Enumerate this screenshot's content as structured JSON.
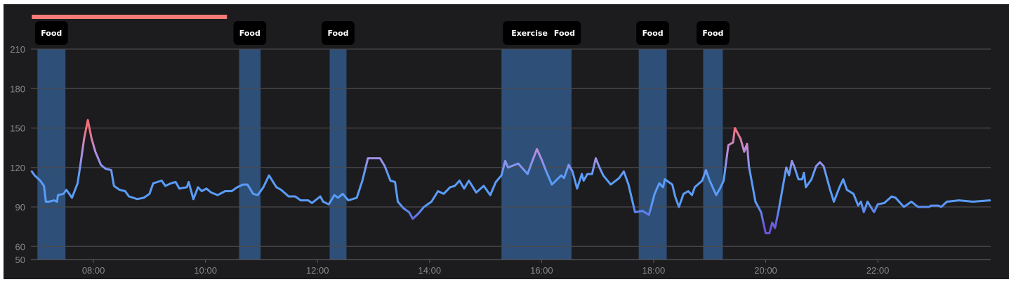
{
  "chart_data": {
    "type": "line",
    "title": "",
    "xlabel": "",
    "ylabel": "",
    "xlim": [
      "06:53",
      "24:01"
    ],
    "ylim": [
      50,
      210
    ],
    "y_ticks": [
      50,
      60,
      90,
      120,
      150,
      180,
      210
    ],
    "x_ticks": [
      "08:00",
      "10:00",
      "12:00",
      "14:00",
      "16:00",
      "18:00",
      "20:00",
      "22:00"
    ],
    "grid": true,
    "highlight_range": {
      "start": "06:54",
      "end": "10:23",
      "color": "#f87a78"
    },
    "colors": {
      "background": "#1c1c1e",
      "band": "#2e4f78",
      "grid": "#4a4a4e",
      "high": "#f56e7c",
      "elevated": "#b48ee0",
      "normal": "#5a9cf8",
      "low": "#6a55dc"
    },
    "events": [
      {
        "label": "Food",
        "start": "07:00",
        "end": "07:30"
      },
      {
        "label": "Food",
        "start": "10:36",
        "end": "10:59"
      },
      {
        "label": "Food",
        "start": "12:13",
        "end": "12:31"
      },
      {
        "label": "Exercise",
        "start": "15:17",
        "end": "16:17"
      },
      {
        "label": "Food",
        "start": "16:17",
        "end": "16:32"
      },
      {
        "label": "Food",
        "start": "17:44",
        "end": "18:14"
      },
      {
        "label": "Food",
        "start": "18:53",
        "end": "19:14"
      }
    ],
    "series": [
      {
        "x": [
          "06:54",
          "06:57",
          "07:03",
          "07:07",
          "07:09",
          "07:12",
          "07:18",
          "07:21",
          "07:22",
          "07:28",
          "07:31",
          "07:35",
          "07:37",
          "07:43",
          "07:46",
          "07:50",
          "07:54",
          "07:58",
          "08:02",
          "08:08",
          "08:13",
          "08:19",
          "08:22",
          "08:28",
          "08:34",
          "08:38",
          "08:47",
          "08:54",
          "09:00",
          "09:04",
          "09:13",
          "09:17",
          "09:23",
          "09:28",
          "09:32",
          "09:40",
          "09:42",
          "09:47",
          "09:52",
          "09:56",
          "10:01",
          "10:06",
          "10:13",
          "10:21",
          "10:28",
          "10:34",
          "10:40",
          "10:45",
          "10:51",
          "10:56",
          "11:02",
          "11:08",
          "11:16",
          "11:21",
          "11:29",
          "11:36",
          "11:42",
          "11:50",
          "11:54",
          "12:03",
          "12:06",
          "12:12",
          "12:18",
          "12:22",
          "12:27",
          "12:33",
          "12:42",
          "12:48",
          "12:54",
          "13:07",
          "13:12",
          "13:18",
          "13:23",
          "13:26",
          "13:32",
          "13:38",
          "13:42",
          "13:48",
          "13:54",
          "14:02",
          "14:09",
          "14:15",
          "14:22",
          "14:27",
          "14:32",
          "14:37",
          "14:42",
          "14:50",
          "14:58",
          "15:05",
          "15:11",
          "15:17",
          "15:21",
          "15:24",
          "15:35",
          "15:45",
          "15:49",
          "15:55",
          "16:00",
          "16:05",
          "16:11",
          "16:21",
          "16:24",
          "16:29",
          "16:33",
          "16:38",
          "16:43",
          "16:45",
          "16:49",
          "16:54",
          "16:58",
          "17:02",
          "17:06",
          "17:14",
          "17:23",
          "17:28",
          "17:33",
          "17:40",
          "17:48",
          "17:55",
          "18:01",
          "18:06",
          "18:10",
          "18:12",
          "18:20",
          "18:23",
          "18:27",
          "18:32",
          "18:37",
          "18:41",
          "18:44",
          "18:52",
          "18:56",
          "19:00",
          "19:07",
          "19:11",
          "19:15",
          "19:20",
          "19:25",
          "19:27",
          "19:33",
          "19:37",
          "19:40",
          "19:42",
          "19:49",
          "19:55",
          "20:00",
          "20:04",
          "20:07",
          "20:10",
          "20:14",
          "20:22",
          "20:25",
          "20:28",
          "20:31",
          "20:35",
          "20:39",
          "20:41",
          "20:43",
          "20:49",
          "20:54",
          "20:58",
          "21:02",
          "21:09",
          "21:13",
          "21:19",
          "21:23",
          "21:27",
          "21:34",
          "21:39",
          "21:42",
          "21:45",
          "21:49",
          "21:56",
          "22:00",
          "22:07",
          "22:15",
          "22:19",
          "22:28",
          "22:36",
          "22:43",
          "22:55",
          "22:57",
          "23:05",
          "23:08",
          "23:14",
          "23:27",
          "23:42",
          "24:00"
        ],
        "y": [
          117,
          114,
          110,
          106,
          94,
          94,
          95,
          94,
          99,
          100,
          103,
          99,
          97,
          108,
          122,
          142,
          156,
          142,
          132,
          122,
          119,
          118,
          106,
          103,
          102,
          98,
          96,
          97,
          100,
          108,
          110,
          106,
          108,
          109,
          104,
          105,
          109,
          96,
          105,
          102,
          104,
          101,
          99,
          102,
          102,
          105,
          107,
          107,
          100,
          99,
          105,
          114,
          105,
          103,
          98,
          98,
          95,
          95,
          93,
          98,
          94,
          92,
          99,
          97,
          100,
          95,
          97,
          110,
          127,
          127,
          121,
          110,
          109,
          94,
          89,
          86,
          81,
          85,
          90,
          94,
          102,
          100,
          105,
          106,
          110,
          104,
          110,
          101,
          106,
          99,
          109,
          114,
          125,
          120,
          123,
          115,
          123,
          134,
          126,
          117,
          107,
          114,
          112,
          122,
          117,
          104,
          115,
          110,
          115,
          115,
          127,
          120,
          114,
          107,
          112,
          117,
          107,
          86,
          87,
          84,
          100,
          108,
          105,
          111,
          107,
          98,
          90,
          100,
          102,
          99,
          105,
          110,
          118,
          110,
          99,
          104,
          110,
          137,
          139,
          150,
          142,
          132,
          138,
          121,
          94,
          86,
          70,
          70,
          78,
          74,
          88,
          120,
          114,
          125,
          120,
          111,
          111,
          116,
          105,
          111,
          121,
          124,
          121,
          103,
          94,
          105,
          111,
          103,
          100,
          91,
          94,
          86,
          94,
          86,
          92,
          93,
          98,
          97,
          90,
          94,
          90,
          90,
          91,
          91,
          90,
          94,
          95,
          94,
          95
        ]
      }
    ]
  }
}
